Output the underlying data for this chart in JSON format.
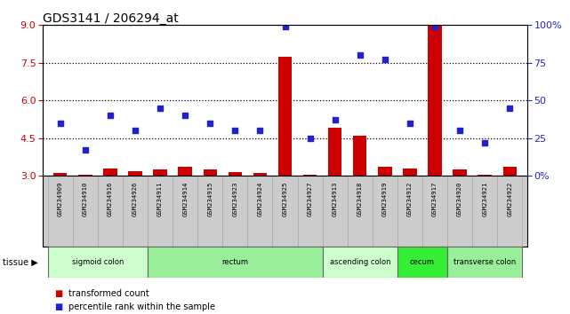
{
  "title": "GDS3141 / 206294_at",
  "samples": [
    "GSM234909",
    "GSM234910",
    "GSM234916",
    "GSM234926",
    "GSM234911",
    "GSM234914",
    "GSM234915",
    "GSM234923",
    "GSM234924",
    "GSM234925",
    "GSM234927",
    "GSM234913",
    "GSM234918",
    "GSM234919",
    "GSM234912",
    "GSM234917",
    "GSM234920",
    "GSM234921",
    "GSM234922"
  ],
  "bar_values": [
    3.1,
    3.05,
    3.3,
    3.2,
    3.25,
    3.35,
    3.25,
    3.15,
    3.1,
    7.75,
    3.05,
    4.9,
    4.6,
    3.35,
    3.3,
    9.0,
    3.25,
    3.05,
    3.35
  ],
  "dot_values": [
    35,
    17,
    40,
    30,
    45,
    40,
    35,
    30,
    30,
    99,
    25,
    37,
    80,
    77,
    35,
    99,
    30,
    22,
    45
  ],
  "ylim_left": [
    3,
    9
  ],
  "ylim_right": [
    0,
    100
  ],
  "yticks_left": [
    3,
    4.5,
    6,
    7.5,
    9
  ],
  "yticks_right": [
    0,
    25,
    50,
    75,
    100
  ],
  "ytick_labels_right": [
    "0%",
    "25",
    "50",
    "75",
    "100%"
  ],
  "bar_color": "#cc0000",
  "dot_color": "#2222cc",
  "bar_width": 0.55,
  "tissue_groups": [
    {
      "label": "sigmoid colon",
      "start": 0,
      "end": 4,
      "color": "#ccffcc"
    },
    {
      "label": "rectum",
      "start": 4,
      "end": 11,
      "color": "#99ee99"
    },
    {
      "label": "ascending colon",
      "start": 11,
      "end": 14,
      "color": "#ccffcc"
    },
    {
      "label": "cecum",
      "start": 14,
      "end": 16,
      "color": "#33ee33"
    },
    {
      "label": "transverse colon",
      "start": 16,
      "end": 19,
      "color": "#99ee99"
    }
  ],
  "grid_dotted_values": [
    4.5,
    6,
    7.5
  ],
  "background_color": "#ffffff",
  "cell_color": "#cccccc",
  "cell_border_color": "#aaaaaa"
}
